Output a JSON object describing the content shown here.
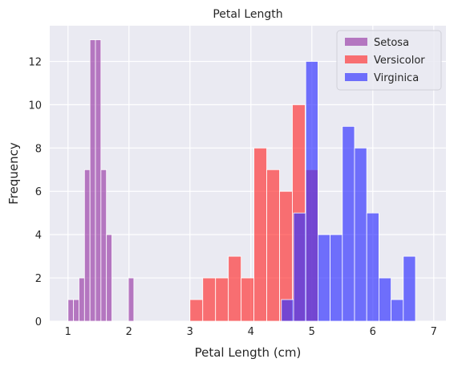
{
  "chart_data": {
    "type": "histogram",
    "title": "Petal Length",
    "xlabel": "Petal Length (cm)",
    "ylabel": "Frequency",
    "xlim": [
      0.7,
      7.2
    ],
    "ylim": [
      0,
      13.65
    ],
    "xticks": [
      1,
      2,
      3,
      4,
      5,
      6,
      7
    ],
    "yticks": [
      0,
      2,
      4,
      6,
      8,
      10,
      12
    ],
    "grid": true,
    "legend": "top-right",
    "colors": {
      "background": "#eaeaf2",
      "grid": "#ffffff",
      "setosa": "#9b3fa8",
      "versicolor": "#ff3333",
      "virginica": "#3333ff"
    },
    "opacity": 0.68,
    "series": [
      {
        "name": "Setosa",
        "color_key": "setosa",
        "bin_start": 1.0,
        "bin_width": 0.09,
        "counts": [
          1,
          1,
          2,
          7,
          13,
          13,
          7,
          4,
          0,
          0,
          0,
          2
        ]
      },
      {
        "name": "Versicolor",
        "color_key": "versicolor",
        "bin_start": 3.0,
        "bin_width": 0.21,
        "counts": [
          1,
          2,
          2,
          3,
          2,
          8,
          7,
          6,
          10,
          7
        ]
      },
      {
        "name": "Virginica",
        "color_key": "virginica",
        "bin_start": 4.5,
        "bin_width": 0.2,
        "counts": [
          1,
          5,
          12,
          4,
          4,
          9,
          8,
          5,
          2,
          1,
          3
        ]
      }
    ]
  }
}
